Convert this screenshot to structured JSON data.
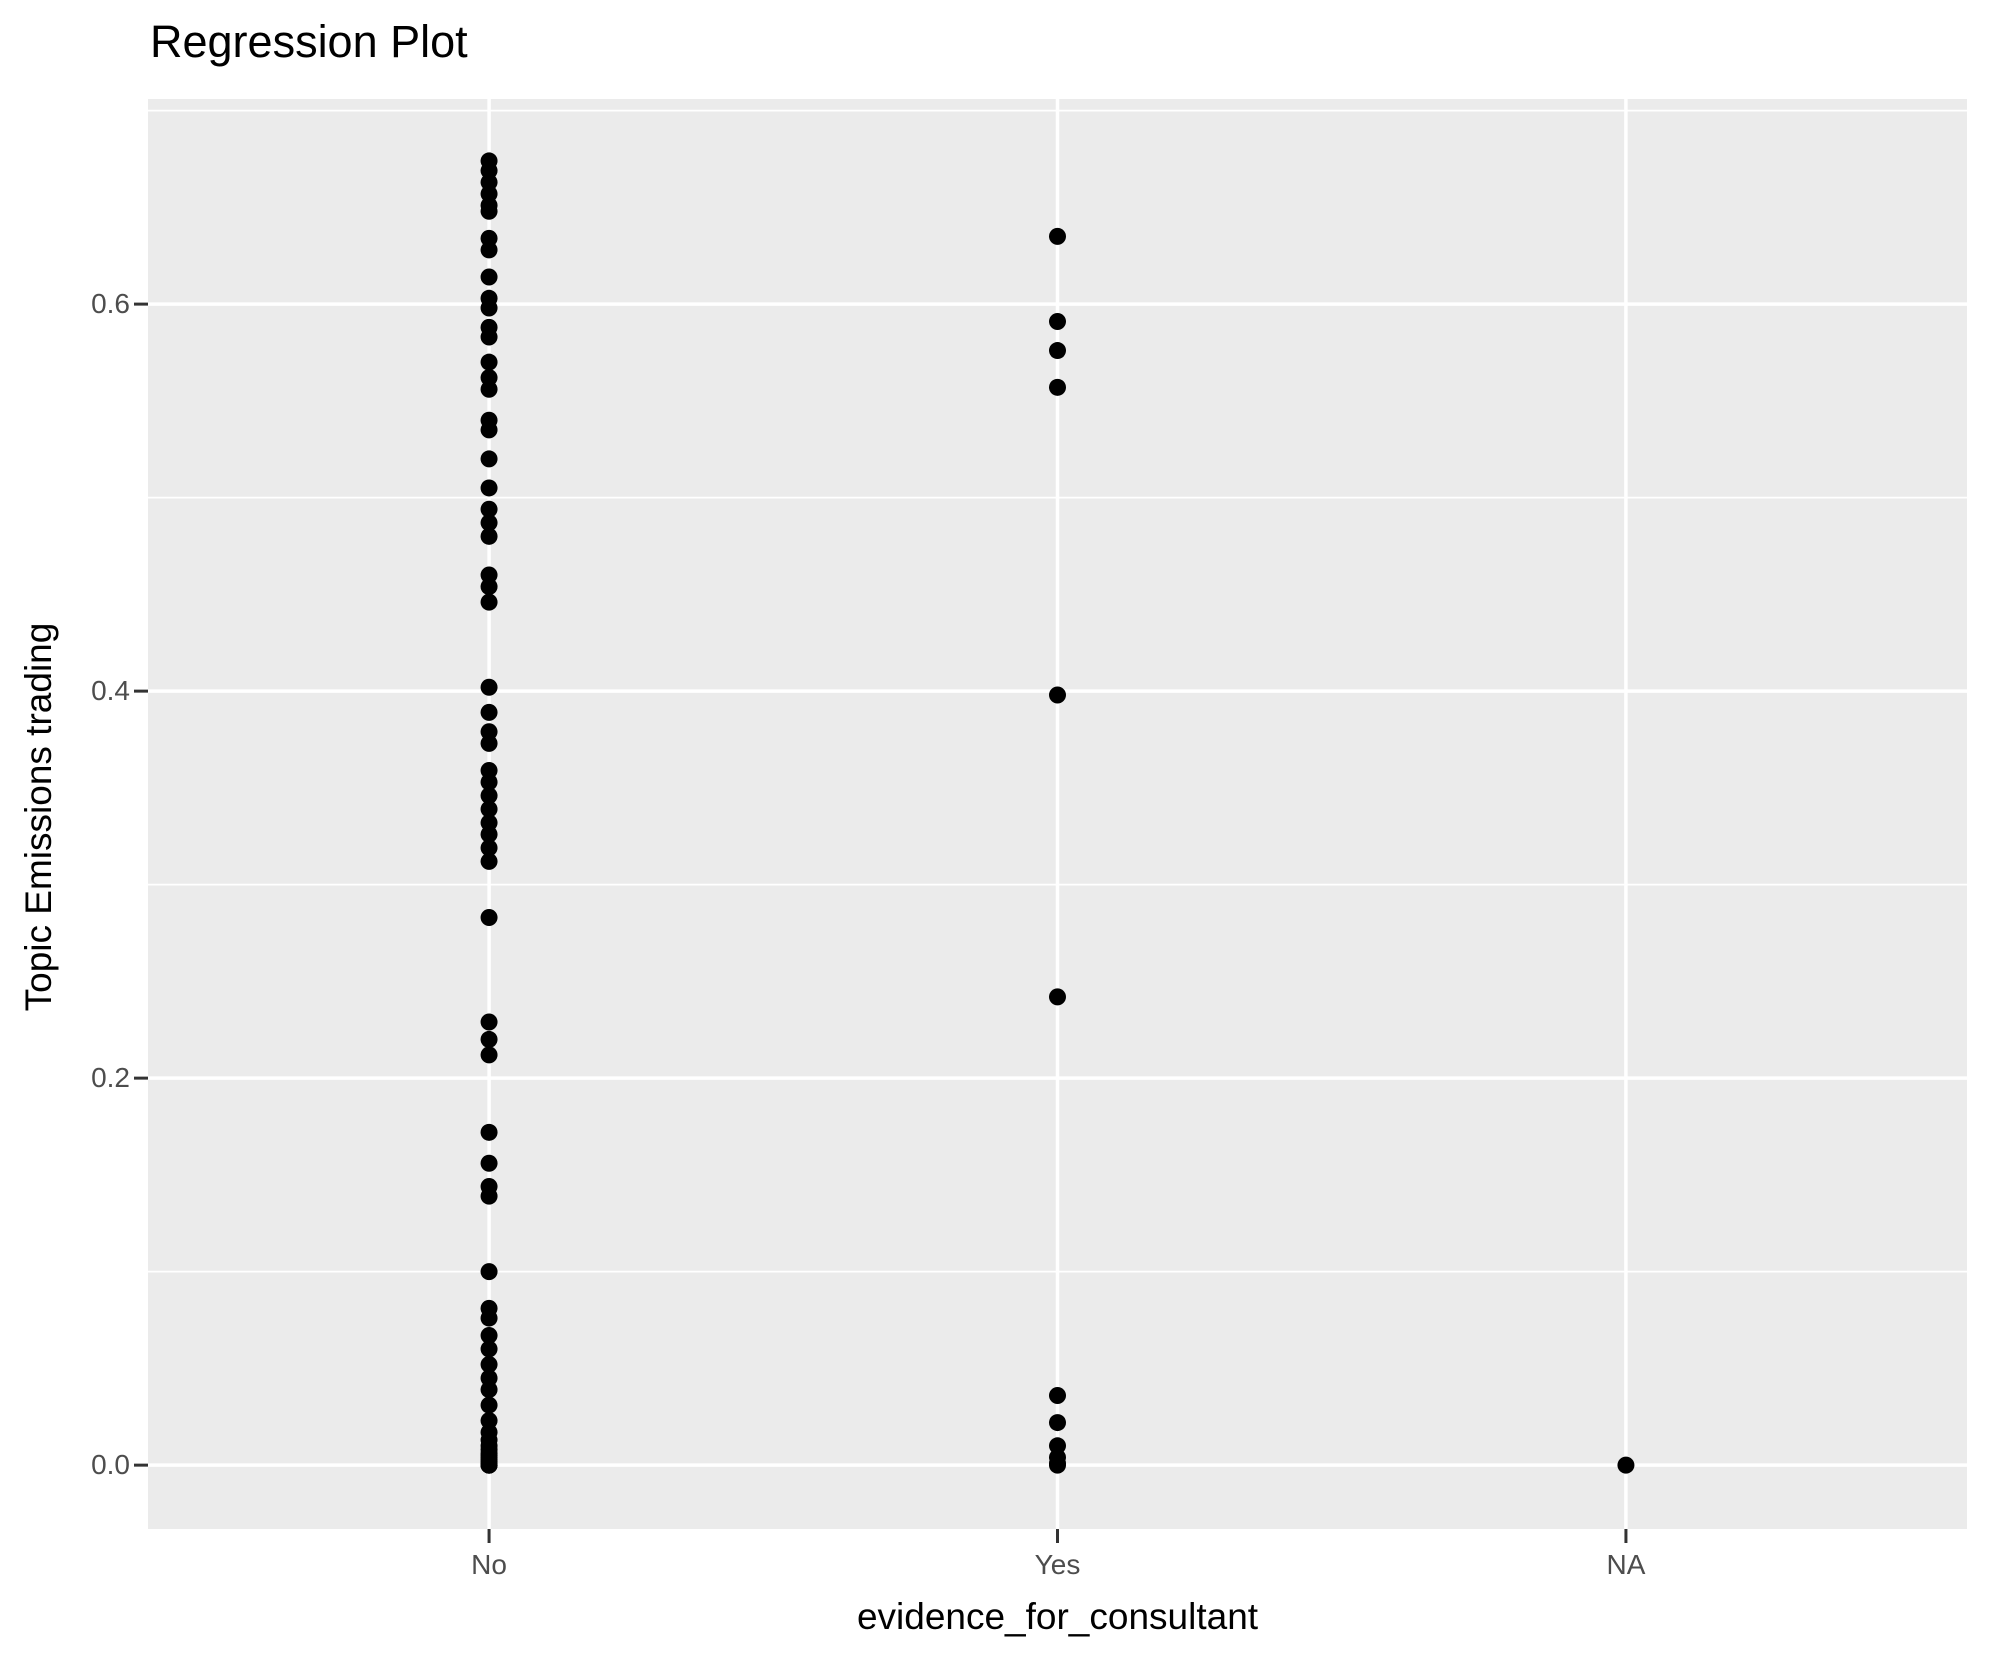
{
  "chart_data": {
    "type": "scatter",
    "title": "Regression Plot",
    "xlabel": "evidence_for_consultant",
    "ylabel": "Topic Emissions trading",
    "categories": [
      "No",
      "Yes",
      "NA"
    ],
    "y_tick_labels": [
      "0.0",
      "0.2",
      "0.4",
      "0.6"
    ],
    "y_tick_values": [
      0.0,
      0.2,
      0.4,
      0.6
    ],
    "y_minor_values": [
      0.1,
      0.3,
      0.5,
      0.7
    ],
    "ylim": [
      -0.033,
      0.706
    ],
    "grid": "on",
    "legend": "none",
    "series": [
      {
        "name": "No",
        "values": [
          0.674,
          0.669,
          0.663,
          0.657,
          0.651,
          0.648,
          0.634,
          0.628,
          0.614,
          0.603,
          0.598,
          0.588,
          0.583,
          0.57,
          0.562,
          0.556,
          0.54,
          0.535,
          0.52,
          0.505,
          0.494,
          0.487,
          0.48,
          0.46,
          0.454,
          0.446,
          0.402,
          0.389,
          0.379,
          0.373,
          0.359,
          0.353,
          0.346,
          0.339,
          0.332,
          0.326,
          0.319,
          0.312,
          0.283,
          0.229,
          0.22,
          0.212,
          0.172,
          0.156,
          0.144,
          0.139,
          0.1,
          0.081,
          0.076,
          0.067,
          0.06,
          0.052,
          0.045,
          0.039,
          0.031,
          0.023,
          0.017,
          0.013,
          0.01,
          0.008,
          0.006,
          0.005,
          0.004,
          0.003,
          0.002,
          0.001,
          0.0,
          0.0,
          0.0,
          0.0
        ]
      },
      {
        "name": "Yes",
        "values": [
          0.635,
          0.591,
          0.576,
          0.557,
          0.398,
          0.242,
          0.036,
          0.022,
          0.01,
          0.004,
          0.001,
          0.0
        ]
      },
      {
        "name": "NA",
        "values": [
          0.0
        ]
      }
    ],
    "colors": {
      "panel_bg": "#EBEBEB",
      "grid": "#FFFFFF",
      "point": "#000000",
      "tick_label": "#4D4D4D",
      "tick_mark": "#333333",
      "title": "#000000"
    }
  }
}
